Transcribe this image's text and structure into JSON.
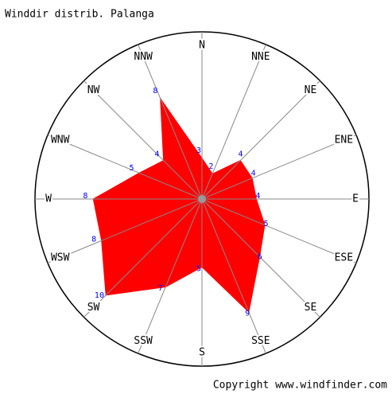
{
  "chart_data": {
    "type": "radar",
    "title": "Winddir distrib.  Palanga",
    "categories": [
      "N",
      "NNE",
      "NE",
      "ENE",
      "E",
      "ESE",
      "SE",
      "SSE",
      "S",
      "SSW",
      "SW",
      "WSW",
      "W",
      "WNW",
      "NW",
      "NNW"
    ],
    "values": [
      3,
      2,
      4,
      4,
      4,
      5,
      6,
      9,
      5,
      7,
      10,
      8,
      8,
      5,
      4,
      8
    ],
    "color": "#ff0000",
    "rlim": [
      0,
      12
    ],
    "footer": "Copyright www.windfinder.com"
  }
}
